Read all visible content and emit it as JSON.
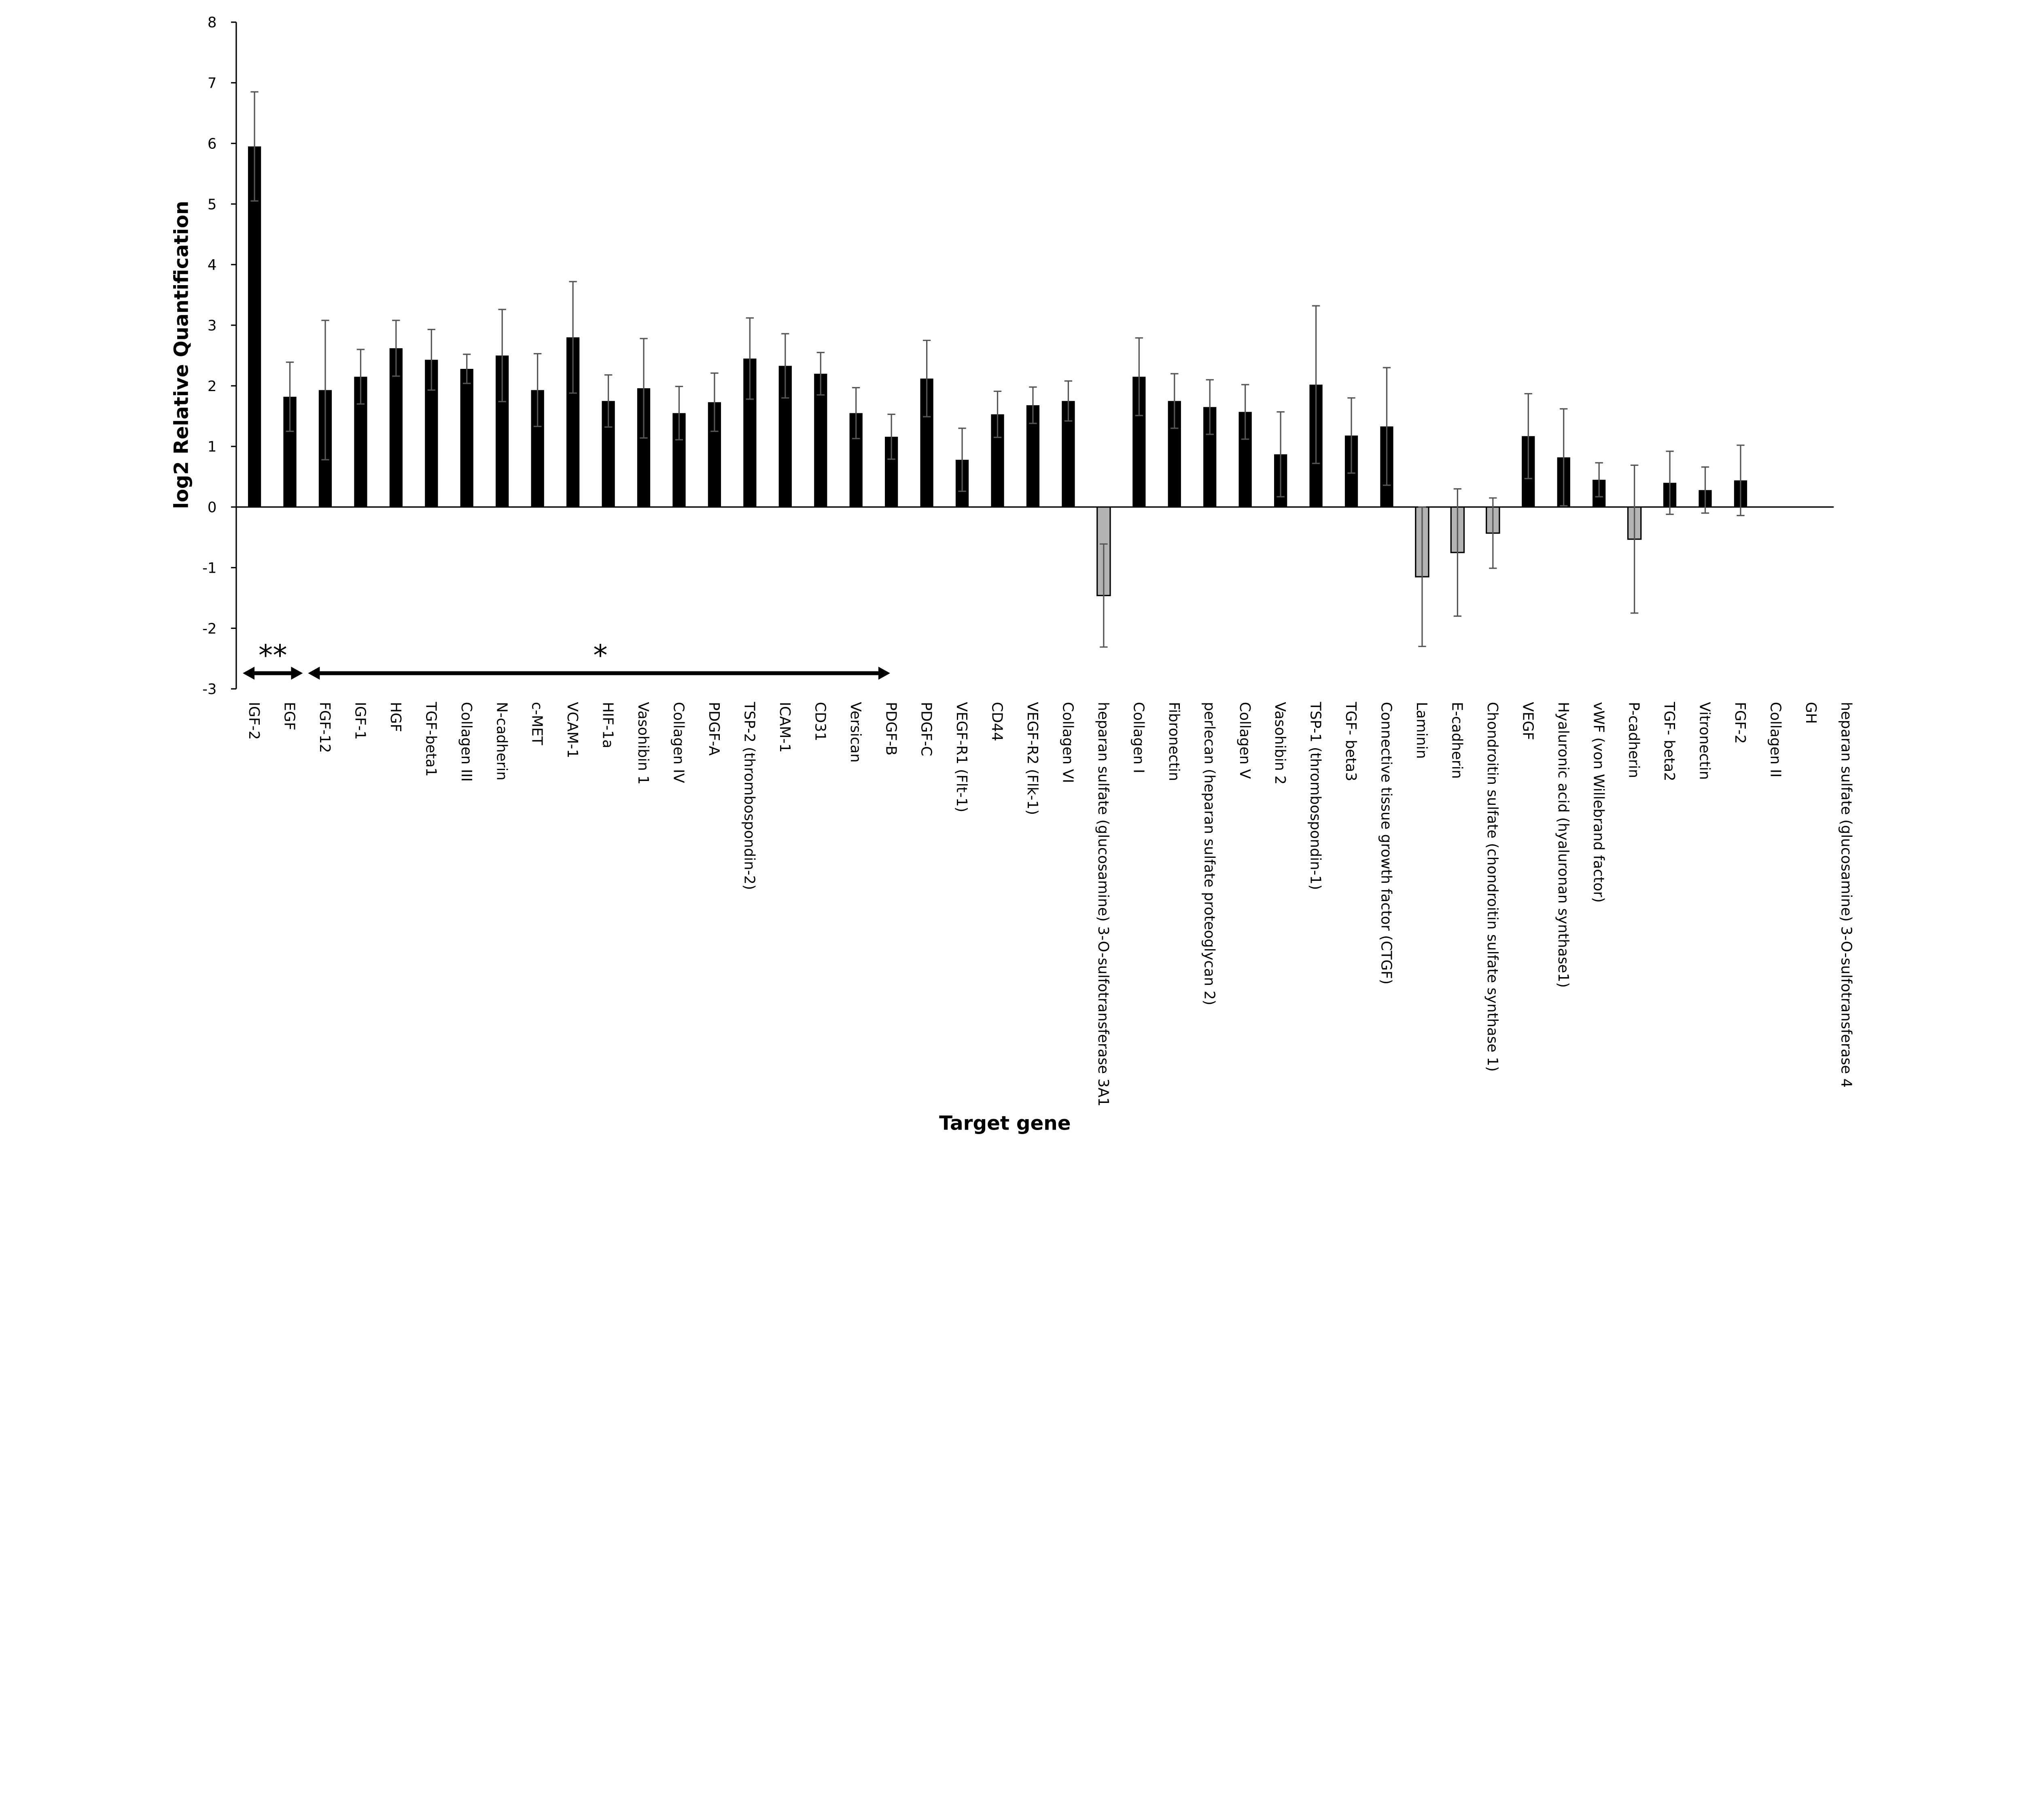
{
  "chart_data": {
    "type": "bar",
    "title": "",
    "xlabel": "Target gene",
    "ylabel": "log2 Relative Quantification",
    "ylim": [
      -3,
      8
    ],
    "yticks": [
      -3,
      -2,
      -1,
      0,
      1,
      2,
      3,
      4,
      5,
      6,
      7,
      8
    ],
    "grid": false,
    "legend": "none",
    "colors": {
      "positive": "#000000",
      "negative": "#b3b3b3",
      "error_bar": "#555555"
    },
    "categories": [
      "IGF-2",
      "EGF",
      "FGF-12",
      "IGF-1",
      "HGF",
      "TGF-beta1",
      "Collagen III",
      "N-cadherin",
      "c-MET",
      "VCAM-1",
      "HIF-1a",
      "Vasohibin 1",
      "Collagen IV",
      "PDGF-A",
      "TSP-2 (thrombospondin-2)",
      "ICAM-1",
      "CD31",
      "Versican",
      "PDGF-B",
      "PDGF-C",
      "VEGF-R1 (Flt-1)",
      "CD44",
      "VEGF-R2 (Flk-1)",
      "Collagen VI",
      "heparan sulfate (glucosamine) 3-O-sulfotransferase 3A1",
      "Collagen I",
      "Fibronectin",
      "perlecan (heparan sulfate proteoglycan 2)",
      "Collagen V",
      "Vasohibin 2",
      "TSP-1 (thrombospondin-1)",
      "TGF- beta3",
      "Connective tissue growth factor (CTGF)",
      "Laminin",
      "E-cadherin",
      "Chondroitin sulfate (chondroitin sulfate synthase 1)",
      "VEGF",
      "Hyaluronic acid (hyaluronan synthase1)",
      "vWF (von Willebrand factor)",
      "P-cadherin",
      "TGF- beta2",
      "Vitronectin",
      "FGF-2",
      "Collagen II",
      "GH",
      "heparan sulfate (glucosamine) 3-O-sulfotransferase 4"
    ],
    "values": [
      5.95,
      1.82,
      1.93,
      2.15,
      2.62,
      2.43,
      2.28,
      2.5,
      1.93,
      2.8,
      1.75,
      1.96,
      1.55,
      1.73,
      2.45,
      2.33,
      2.2,
      1.55,
      1.16,
      2.12,
      0.78,
      1.53,
      1.68,
      1.75,
      -1.46,
      2.15,
      1.75,
      1.65,
      1.57,
      0.87,
      2.02,
      1.18,
      1.33,
      -1.15,
      -0.75,
      -0.43,
      1.17,
      0.82,
      0.45,
      -0.53,
      0.4,
      0.28,
      0.44,
      0,
      0,
      0
    ],
    "errors": [
      0.9,
      0.57,
      1.15,
      0.45,
      0.46,
      0.5,
      0.24,
      0.76,
      0.6,
      0.92,
      0.43,
      0.82,
      0.44,
      0.48,
      0.67,
      0.53,
      0.35,
      0.42,
      0.37,
      0.63,
      0.52,
      0.38,
      0.3,
      0.33,
      0.85,
      0.64,
      0.45,
      0.45,
      0.45,
      0.7,
      1.3,
      0.62,
      0.97,
      1.15,
      1.05,
      0.58,
      0.7,
      0.8,
      0.28,
      1.22,
      0.52,
      0.38,
      0.58,
      0,
      0,
      0
    ],
    "annotations": [
      {
        "text": "**",
        "span": [
          "IGF-2",
          "EGF"
        ]
      },
      {
        "text": "*",
        "span": [
          "FGF-12",
          "PDGF-B"
        ]
      }
    ]
  }
}
